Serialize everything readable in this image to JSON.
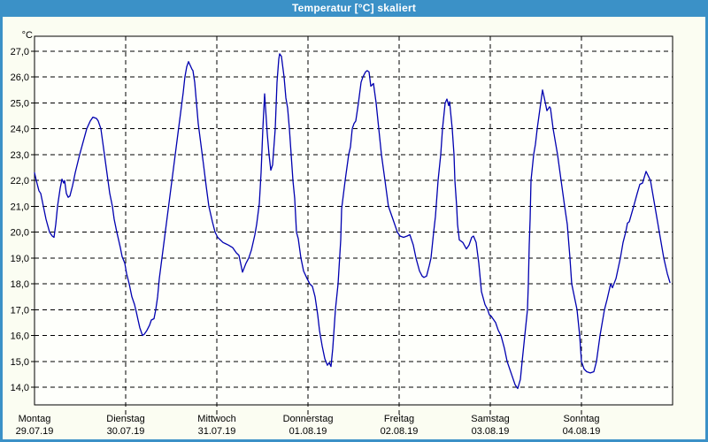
{
  "window": {
    "title": "Temperatur [°C] skaliert",
    "titlebar_color": "#3B91C7",
    "content_bg": "#FBFDF2"
  },
  "chart_data": {
    "type": "line",
    "title": "Temperatur [°C] skaliert",
    "ylabel": "°C",
    "ylim": [
      14.0,
      27.0
    ],
    "grid": "dashed",
    "legend": "none",
    "line_color": "#0000B0",
    "plot_bg": "#FEFFFB",
    "y_ticks": [
      "27,0",
      "26,0",
      "25,0",
      "24,0",
      "23,0",
      "22,0",
      "21,0",
      "20,0",
      "19,0",
      "18,0",
      "17,0",
      "16,0",
      "15,0",
      "14,0"
    ],
    "days": [
      {
        "name": "Montag",
        "date": "29.07.19"
      },
      {
        "name": "Dienstag",
        "date": "30.07.19"
      },
      {
        "name": "Mittwoch",
        "date": "31.07.19"
      },
      {
        "name": "Donnerstag",
        "date": "01.08.19"
      },
      {
        "name": "Freitag",
        "date": "02.08.19"
      },
      {
        "name": "Samstag",
        "date": "03.08.19"
      },
      {
        "name": "Sonntag",
        "date": "04.08.19"
      }
    ],
    "series": [
      {
        "name": "Temperatur",
        "color": "#0000B0",
        "x_unit": "days_since_2019-07-29",
        "points": [
          [
            0,
            22.3
          ],
          [
            0.019,
            22
          ],
          [
            0.049,
            21.6
          ],
          [
            0.068,
            21.5
          ],
          [
            0.097,
            21
          ],
          [
            0.126,
            20.5
          ],
          [
            0.165,
            20
          ],
          [
            0.194,
            19.85
          ],
          [
            0.214,
            19.8
          ],
          [
            0.233,
            20.3
          ],
          [
            0.252,
            21
          ],
          [
            0.282,
            21.7
          ],
          [
            0.301,
            22.05
          ],
          [
            0.32,
            21.9
          ],
          [
            0.33,
            22
          ],
          [
            0.35,
            21.5
          ],
          [
            0.369,
            21.35
          ],
          [
            0.388,
            21.4
          ],
          [
            0.417,
            21.8
          ],
          [
            0.447,
            22.3
          ],
          [
            0.495,
            23
          ],
          [
            0.534,
            23.5
          ],
          [
            0.573,
            24
          ],
          [
            0.612,
            24.3
          ],
          [
            0.641,
            24.45
          ],
          [
            0.68,
            24.4
          ],
          [
            0.699,
            24.3
          ],
          [
            0.728,
            24
          ],
          [
            0.748,
            23.5
          ],
          [
            0.767,
            23
          ],
          [
            0.786,
            22.5
          ],
          [
            0.806,
            22
          ],
          [
            0.825,
            21.5
          ],
          [
            0.854,
            21
          ],
          [
            0.874,
            20.5
          ],
          [
            0.903,
            20
          ],
          [
            0.922,
            19.7
          ],
          [
            0.942,
            19.4
          ],
          [
            0.961,
            19.05
          ],
          [
            0.99,
            18.8
          ],
          [
            1.01,
            18.4
          ],
          [
            1.039,
            18
          ],
          [
            1.068,
            17.5
          ],
          [
            1.097,
            17.2
          ],
          [
            1.117,
            16.9
          ],
          [
            1.136,
            16.6
          ],
          [
            1.155,
            16.3
          ],
          [
            1.184,
            16
          ],
          [
            1.204,
            16.05
          ],
          [
            1.233,
            16.2
          ],
          [
            1.262,
            16.4
          ],
          [
            1.282,
            16.6
          ],
          [
            1.311,
            16.65
          ],
          [
            1.33,
            17
          ],
          [
            1.35,
            17.5
          ],
          [
            1.369,
            18.2
          ],
          [
            1.398,
            19
          ],
          [
            1.427,
            19.8
          ],
          [
            1.456,
            20.6
          ],
          [
            1.485,
            21.4
          ],
          [
            1.515,
            22.2
          ],
          [
            1.544,
            23
          ],
          [
            1.573,
            23.8
          ],
          [
            1.602,
            24.6
          ],
          [
            1.631,
            25.4
          ],
          [
            1.65,
            26
          ],
          [
            1.67,
            26.4
          ],
          [
            1.689,
            26.6
          ],
          [
            1.709,
            26.45
          ],
          [
            1.728,
            26.3
          ],
          [
            1.738,
            26.25
          ],
          [
            1.757,
            25.8
          ],
          [
            1.777,
            25
          ],
          [
            1.796,
            24.2
          ],
          [
            1.825,
            23.4
          ],
          [
            1.854,
            22.6
          ],
          [
            1.883,
            21.8
          ],
          [
            1.913,
            21
          ],
          [
            1.951,
            20.4
          ],
          [
            1.981,
            20
          ],
          [
            2.01,
            19.8
          ],
          [
            2.068,
            19.6
          ],
          [
            2.126,
            19.5
          ],
          [
            2.175,
            19.4
          ],
          [
            2.214,
            19.2
          ],
          [
            2.243,
            19.1
          ],
          [
            2.282,
            18.45
          ],
          [
            2.32,
            18.8
          ],
          [
            2.35,
            19
          ],
          [
            2.379,
            19.3
          ],
          [
            2.417,
            19.9
          ],
          [
            2.437,
            20.3
          ],
          [
            2.466,
            21.1
          ],
          [
            2.485,
            22.3
          ],
          [
            2.505,
            24
          ],
          [
            2.524,
            25.35
          ],
          [
            2.553,
            23.8
          ],
          [
            2.573,
            23
          ],
          [
            2.592,
            22.4
          ],
          [
            2.612,
            22.6
          ],
          [
            2.641,
            24
          ],
          [
            2.66,
            25.8
          ],
          [
            2.68,
            26.7
          ],
          [
            2.689,
            26.9
          ],
          [
            2.709,
            26.8
          ],
          [
            2.738,
            26
          ],
          [
            2.757,
            25.2
          ],
          [
            2.777,
            24.8
          ],
          [
            2.796,
            24
          ],
          [
            2.816,
            23
          ],
          [
            2.835,
            22
          ],
          [
            2.854,
            21.3
          ],
          [
            2.874,
            20
          ],
          [
            2.893,
            19.75
          ],
          [
            2.922,
            19
          ],
          [
            2.951,
            18.5
          ],
          [
            2.99,
            18.2
          ],
          [
            3.019,
            18
          ],
          [
            3.049,
            17.9
          ],
          [
            3.078,
            17.5
          ],
          [
            3.107,
            16.8
          ],
          [
            3.126,
            16.2
          ],
          [
            3.155,
            15.6
          ],
          [
            3.184,
            15.1
          ],
          [
            3.214,
            14.85
          ],
          [
            3.233,
            14.95
          ],
          [
            3.252,
            14.8
          ],
          [
            3.272,
            15.5
          ],
          [
            3.282,
            16
          ],
          [
            3.301,
            17
          ],
          [
            3.33,
            18
          ],
          [
            3.359,
            19.7
          ],
          [
            3.369,
            20.9
          ],
          [
            3.408,
            22
          ],
          [
            3.447,
            23
          ],
          [
            3.466,
            23.3
          ],
          [
            3.485,
            24
          ],
          [
            3.505,
            24.2
          ],
          [
            3.524,
            24.3
          ],
          [
            3.553,
            25
          ],
          [
            3.583,
            25.8
          ],
          [
            3.602,
            26
          ],
          [
            3.631,
            26.2
          ],
          [
            3.65,
            26.25
          ],
          [
            3.67,
            26.2
          ],
          [
            3.689,
            25.65
          ],
          [
            3.718,
            25.75
          ],
          [
            3.748,
            25
          ],
          [
            3.777,
            24
          ],
          [
            3.806,
            23
          ],
          [
            3.845,
            22
          ],
          [
            3.883,
            21
          ],
          [
            3.932,
            20.5
          ],
          [
            3.981,
            20
          ],
          [
            4.01,
            19.85
          ],
          [
            4.049,
            19.8
          ],
          [
            4.087,
            19.85
          ],
          [
            4.117,
            19.9
          ],
          [
            4.155,
            19.5
          ],
          [
            4.184,
            19
          ],
          [
            4.223,
            18.5
          ],
          [
            4.252,
            18.3
          ],
          [
            4.272,
            18.25
          ],
          [
            4.301,
            18.3
          ],
          [
            4.33,
            18.7
          ],
          [
            4.35,
            19
          ],
          [
            4.379,
            20
          ],
          [
            4.398,
            20.6
          ],
          [
            4.427,
            22
          ],
          [
            4.456,
            23
          ],
          [
            4.476,
            24
          ],
          [
            4.505,
            25
          ],
          [
            4.524,
            25.15
          ],
          [
            4.544,
            24.9
          ],
          [
            4.553,
            25.05
          ],
          [
            4.583,
            24
          ],
          [
            4.602,
            23
          ],
          [
            4.612,
            22
          ],
          [
            4.631,
            21
          ],
          [
            4.641,
            20.3
          ],
          [
            4.66,
            19.7
          ],
          [
            4.699,
            19.6
          ],
          [
            4.738,
            19.35
          ],
          [
            4.767,
            19.5
          ],
          [
            4.796,
            19.8
          ],
          [
            4.816,
            19.85
          ],
          [
            4.845,
            19.6
          ],
          [
            4.874,
            18.8
          ],
          [
            4.903,
            17.7
          ],
          [
            4.942,
            17.2
          ],
          [
            4.971,
            17
          ],
          [
            4.99,
            16.8
          ],
          [
            5.01,
            16.75
          ],
          [
            5.039,
            16.6
          ],
          [
            5.058,
            16.5
          ],
          [
            5.087,
            16.2
          ],
          [
            5.117,
            16
          ],
          [
            5.155,
            15.5
          ],
          [
            5.184,
            15
          ],
          [
            5.233,
            14.5
          ],
          [
            5.272,
            14.1
          ],
          [
            5.301,
            13.95
          ],
          [
            5.33,
            14.3
          ],
          [
            5.35,
            15
          ],
          [
            5.379,
            16
          ],
          [
            5.408,
            17
          ],
          [
            5.417,
            18
          ],
          [
            5.427,
            19.5
          ],
          [
            5.437,
            20.5
          ],
          [
            5.447,
            22
          ],
          [
            5.476,
            23
          ],
          [
            5.495,
            23.4
          ],
          [
            5.515,
            24
          ],
          [
            5.553,
            25
          ],
          [
            5.573,
            25.5
          ],
          [
            5.592,
            25.2
          ],
          [
            5.621,
            24.7
          ],
          [
            5.65,
            24.85
          ],
          [
            5.66,
            24.8
          ],
          [
            5.689,
            24
          ],
          [
            5.738,
            23
          ],
          [
            5.777,
            22
          ],
          [
            5.816,
            21
          ],
          [
            5.845,
            20.3
          ],
          [
            5.874,
            19
          ],
          [
            5.893,
            18
          ],
          [
            5.951,
            17
          ],
          [
            5.981,
            16
          ],
          [
            6,
            15
          ],
          [
            6.029,
            14.7
          ],
          [
            6.058,
            14.6
          ],
          [
            6.097,
            14.55
          ],
          [
            6.136,
            14.6
          ],
          [
            6.165,
            15
          ],
          [
            6.204,
            16
          ],
          [
            6.252,
            17
          ],
          [
            6.282,
            17.4
          ],
          [
            6.32,
            18
          ],
          [
            6.34,
            17.85
          ],
          [
            6.379,
            18.2
          ],
          [
            6.427,
            19
          ],
          [
            6.456,
            19.6
          ],
          [
            6.485,
            20
          ],
          [
            6.505,
            20.35
          ],
          [
            6.524,
            20.4
          ],
          [
            6.573,
            21
          ],
          [
            6.612,
            21.5
          ],
          [
            6.641,
            21.85
          ],
          [
            6.67,
            21.9
          ],
          [
            6.709,
            22.35
          ],
          [
            6.757,
            22
          ],
          [
            6.806,
            21
          ],
          [
            6.854,
            20
          ],
          [
            6.903,
            19
          ],
          [
            6.942,
            18.4
          ],
          [
            6.971,
            18.05
          ]
        ]
      }
    ]
  }
}
